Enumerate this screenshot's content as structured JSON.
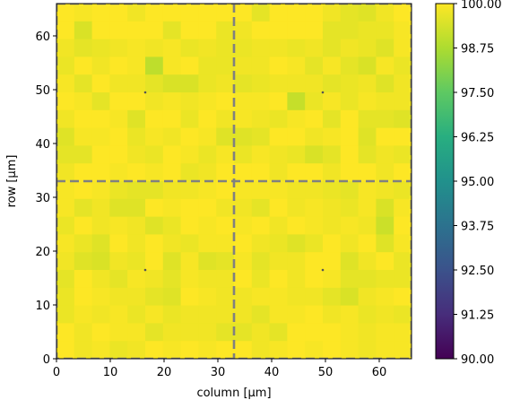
{
  "chart_data": {
    "type": "heatmap",
    "title": "",
    "xlabel": "column [µm]",
    "ylabel": "row [µm]",
    "xlim": [
      0,
      66
    ],
    "ylim": [
      0,
      66
    ],
    "x_ticks": [
      0,
      10,
      20,
      30,
      40,
      50,
      60
    ],
    "y_ticks": [
      0,
      10,
      20,
      30,
      40,
      50,
      60
    ],
    "grid": false,
    "grid_size": [
      20,
      20
    ],
    "cell_size_um": 3.3,
    "colormap": "viridis",
    "colorbar": {
      "vmin": 90.0,
      "vmax": 100.0,
      "ticks": [
        "90.00",
        "91.25",
        "92.50",
        "93.75",
        "95.00",
        "96.25",
        "97.50",
        "98.75",
        "100.00"
      ]
    },
    "dashed_lines": {
      "color": "#808080",
      "vertical_x": [
        33
      ],
      "horizontal_y": [
        33
      ]
    },
    "markers": [
      {
        "x": 16.5,
        "y": 49.5
      },
      {
        "x": 49.5,
        "y": 49.5
      },
      {
        "x": 16.5,
        "y": 16.5
      },
      {
        "x": 49.5,
        "y": 16.5
      }
    ],
    "values_rows_top_to_bottom": [
      [
        100.0,
        99.9,
        100.0,
        100.0,
        99.8,
        100.0,
        100.0,
        100.0,
        100.0,
        100.0,
        100.0,
        99.6,
        100.0,
        100.0,
        100.0,
        99.8,
        99.6,
        99.5,
        99.8,
        100.0
      ],
      [
        100.0,
        99.4,
        100.0,
        100.0,
        100.0,
        100.0,
        99.6,
        100.0,
        100.0,
        99.7,
        99.8,
        100.0,
        100.0,
        100.0,
        100.0,
        99.6,
        99.6,
        99.7,
        99.7,
        99.9
      ],
      [
        99.8,
        99.6,
        99.7,
        99.8,
        99.9,
        99.8,
        99.9,
        99.7,
        99.8,
        99.7,
        99.7,
        99.8,
        99.8,
        99.7,
        99.8,
        99.6,
        99.8,
        99.7,
        99.5,
        99.9
      ],
      [
        99.7,
        100.0,
        99.8,
        100.0,
        99.9,
        99.0,
        99.9,
        100.0,
        99.7,
        99.7,
        99.8,
        99.8,
        100.0,
        99.9,
        99.6,
        99.9,
        99.6,
        99.4,
        99.9,
        99.7
      ],
      [
        99.9,
        99.6,
        100.0,
        99.8,
        99.8,
        99.6,
        99.4,
        99.4,
        99.7,
        99.8,
        99.6,
        99.7,
        99.8,
        99.8,
        99.8,
        99.6,
        99.7,
        99.8,
        99.5,
        99.8
      ],
      [
        100.0,
        99.9,
        99.6,
        100.0,
        100.0,
        99.8,
        99.9,
        99.8,
        99.9,
        100.0,
        99.9,
        99.9,
        100.0,
        99.1,
        99.7,
        99.9,
        99.7,
        99.9,
        99.8,
        99.8
      ],
      [
        99.8,
        100.0,
        100.0,
        99.9,
        99.5,
        100.0,
        100.0,
        99.7,
        100.0,
        99.8,
        99.9,
        99.8,
        99.7,
        99.9,
        100.0,
        99.6,
        100.0,
        99.6,
        99.6,
        99.5
      ],
      [
        99.5,
        99.9,
        99.9,
        100.0,
        99.7,
        99.9,
        99.8,
        100.0,
        99.9,
        99.5,
        99.5,
        99.6,
        100.0,
        100.0,
        99.8,
        99.9,
        100.0,
        99.5,
        100.0,
        100.0
      ],
      [
        99.6,
        99.6,
        100.0,
        100.0,
        99.8,
        99.7,
        100.0,
        99.9,
        99.7,
        99.9,
        99.7,
        99.9,
        99.8,
        99.7,
        99.4,
        99.6,
        100.0,
        99.6,
        99.8,
        99.7
      ],
      [
        99.8,
        100.0,
        100.0,
        99.9,
        100.0,
        99.9,
        100.0,
        99.7,
        99.8,
        100.0,
        100.0,
        100.0,
        99.8,
        100.0,
        100.0,
        99.8,
        100.0,
        100.0,
        99.8,
        100.0
      ],
      [
        99.9,
        100.0,
        99.9,
        99.7,
        99.6,
        99.6,
        99.8,
        99.8,
        99.9,
        100.0,
        99.9,
        99.9,
        99.9,
        99.8,
        99.8,
        99.7,
        99.6,
        99.9,
        99.8,
        99.7
      ],
      [
        99.9,
        99.6,
        99.8,
        99.5,
        99.5,
        100.0,
        99.9,
        100.0,
        100.0,
        99.8,
        99.8,
        99.6,
        100.0,
        99.8,
        99.9,
        99.8,
        99.7,
        99.9,
        99.4,
        99.9
      ],
      [
        99.7,
        100.0,
        99.8,
        99.9,
        99.8,
        99.5,
        99.7,
        100.0,
        99.9,
        100.0,
        99.9,
        100.0,
        99.8,
        100.0,
        99.9,
        99.8,
        99.9,
        99.8,
        99.2,
        100.0
      ],
      [
        99.9,
        99.7,
        99.5,
        100.0,
        99.8,
        100.0,
        99.8,
        99.7,
        99.9,
        99.9,
        100.0,
        99.8,
        99.7,
        99.5,
        99.7,
        100.0,
        99.8,
        100.0,
        99.5,
        99.9
      ],
      [
        99.8,
        99.5,
        99.4,
        99.8,
        99.7,
        100.0,
        99.5,
        99.9,
        99.5,
        99.6,
        99.9,
        99.6,
        99.8,
        99.8,
        100.0,
        100.0,
        99.5,
        99.8,
        100.0,
        99.7
      ],
      [
        99.6,
        100.0,
        99.8,
        99.6,
        99.9,
        99.8,
        99.6,
        99.9,
        99.8,
        99.8,
        100.0,
        99.7,
        100.0,
        99.8,
        100.0,
        99.9,
        99.6,
        99.6,
        99.7,
        99.7
      ],
      [
        99.7,
        100.0,
        99.9,
        99.8,
        99.8,
        99.6,
        99.5,
        100.0,
        99.9,
        99.8,
        99.8,
        99.9,
        99.9,
        99.8,
        99.8,
        99.6,
        99.4,
        99.8,
        99.9,
        100.0
      ],
      [
        99.7,
        99.9,
        99.8,
        99.9,
        99.7,
        99.9,
        99.7,
        99.8,
        99.8,
        99.8,
        99.8,
        99.6,
        99.9,
        99.9,
        100.0,
        99.8,
        99.9,
        99.7,
        99.8,
        99.7
      ],
      [
        100.0,
        99.8,
        100.0,
        99.9,
        99.9,
        99.6,
        99.8,
        99.8,
        99.8,
        99.6,
        99.6,
        99.8,
        99.6,
        100.0,
        100.0,
        100.0,
        99.9,
        99.8,
        99.9,
        99.9
      ],
      [
        100.0,
        99.8,
        99.9,
        99.7,
        99.8,
        100.0,
        99.9,
        100.0,
        99.9,
        100.0,
        100.0,
        99.8,
        99.9,
        100.0,
        99.9,
        100.0,
        99.9,
        99.8,
        99.9,
        99.9
      ]
    ]
  }
}
